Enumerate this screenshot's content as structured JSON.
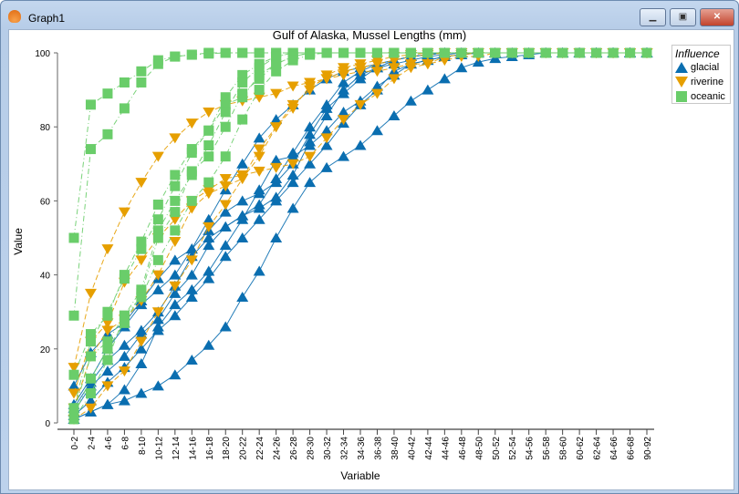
{
  "window": {
    "title": "Graph1",
    "icon": "scallop-shell-icon",
    "buttons": [
      "minimize",
      "maximize",
      "close"
    ]
  },
  "chart_data": {
    "type": "line",
    "title": "Gulf of Alaska, Mussel Lengths (mm)",
    "xlabel": "Variable",
    "ylabel": "Value",
    "ylim": [
      0,
      100
    ],
    "yticks": [
      "0",
      "20",
      "40",
      "60",
      "80",
      "100"
    ],
    "grid": false,
    "legend": {
      "title": "Influence",
      "placement": "right"
    },
    "categories": [
      "0-2",
      "2-4",
      "4-6",
      "6-8",
      "8-10",
      "10-12",
      "12-14",
      "14-16",
      "16-18",
      "18-20",
      "20-22",
      "22-24",
      "24-26",
      "26-28",
      "28-30",
      "30-32",
      "32-34",
      "34-36",
      "36-38",
      "38-40",
      "40-42",
      "42-44",
      "44-46",
      "46-48",
      "48-50",
      "50-52",
      "52-54",
      "54-56",
      "56-58",
      "58-60",
      "60-62",
      "62-64",
      "64-66",
      "66-68",
      "90-92"
    ],
    "groups": [
      {
        "name": "glacial",
        "color": "#0a6eb0",
        "marker": "triangle-up",
        "line": "solid"
      },
      {
        "name": "riverine",
        "color": "#e69f00",
        "marker": "triangle-down",
        "line": "dashed"
      },
      {
        "name": "oceanic",
        "color": "#6acd6a",
        "marker": "square",
        "line": "dashdot"
      }
    ],
    "series": [
      {
        "group": "glacial",
        "values": [
          10,
          19,
          24,
          27,
          33,
          39,
          44,
          47,
          55,
          63,
          70,
          77,
          82,
          86,
          90,
          93,
          95,
          96,
          97,
          98,
          99,
          99.5,
          100,
          100,
          100,
          100,
          100,
          100,
          100,
          100,
          100,
          100,
          100,
          100,
          100
        ]
      },
      {
        "group": "glacial",
        "values": [
          5,
          12,
          20,
          26,
          32,
          36,
          40,
          47,
          52,
          57,
          60,
          62,
          65,
          70,
          78,
          85,
          89,
          93,
          96,
          97,
          98,
          99,
          99.5,
          100,
          100,
          100,
          100,
          100,
          100,
          100,
          100,
          100,
          100,
          100,
          100
        ]
      },
      {
        "group": "glacial",
        "values": [
          4,
          11,
          17,
          21,
          25,
          30,
          37,
          45,
          50,
          53,
          56,
          58,
          61,
          67,
          76,
          83,
          90,
          94,
          96,
          98,
          99,
          99.5,
          100,
          100,
          100,
          100,
          100,
          100,
          100,
          100,
          100,
          100,
          100,
          100,
          100
        ]
      },
      {
        "group": "glacial",
        "values": [
          3,
          10,
          14,
          18,
          24,
          28,
          35,
          40,
          48,
          53,
          56,
          59,
          66,
          73,
          80,
          86,
          92,
          95,
          97,
          98,
          99,
          99.5,
          100,
          100,
          100,
          100,
          100,
          100,
          100,
          100,
          100,
          100,
          100,
          100,
          100
        ]
      },
      {
        "group": "glacial",
        "values": [
          2,
          6,
          11,
          15,
          20,
          25,
          29,
          34,
          39,
          45,
          50,
          55,
          60,
          65,
          70,
          75,
          81,
          86,
          90,
          95,
          97,
          98,
          99,
          99.5,
          100,
          100,
          100,
          100,
          100,
          100,
          100,
          100,
          100,
          100,
          100
        ]
      },
      {
        "group": "glacial",
        "values": [
          1,
          3,
          5,
          9,
          16,
          26,
          32,
          36,
          41,
          48,
          55,
          63,
          71,
          72,
          75,
          79,
          84,
          87,
          91,
          94,
          97,
          98,
          99,
          99.5,
          100,
          100,
          100,
          100,
          100,
          100,
          100,
          100,
          100,
          100,
          100
        ]
      },
      {
        "group": "glacial",
        "values": [
          1,
          3,
          5,
          6,
          8,
          10,
          13,
          17,
          21,
          26,
          34,
          41,
          50,
          58,
          65,
          69,
          72,
          75,
          79,
          83,
          87,
          90,
          93,
          96,
          97.5,
          98.5,
          99,
          99.5,
          100,
          100,
          100,
          100,
          100,
          100,
          100
        ]
      },
      {
        "group": "riverine",
        "values": [
          15,
          35,
          47,
          57,
          65,
          72,
          77,
          81,
          84,
          86,
          87,
          88,
          89,
          91,
          92,
          93,
          94,
          95,
          95,
          96,
          97,
          97,
          98,
          99,
          99,
          100,
          100,
          100,
          100,
          100,
          100,
          100,
          100,
          100,
          100
        ]
      },
      {
        "group": "riverine",
        "values": [
          8,
          22,
          27,
          38,
          44,
          50,
          55,
          60,
          63,
          66,
          67,
          68,
          69,
          70,
          72,
          77,
          82,
          86,
          89,
          93,
          96,
          97,
          99,
          99.5,
          100,
          100,
          100,
          100,
          100,
          100,
          100,
          100,
          100,
          100,
          100
        ]
      },
      {
        "group": "riverine",
        "values": [
          4,
          18,
          25,
          28,
          33,
          40,
          49,
          58,
          62,
          64,
          66,
          74,
          80,
          85,
          91,
          93,
          95,
          96,
          97,
          98,
          99,
          99.5,
          100,
          100,
          100,
          100,
          100,
          100,
          100,
          100,
          100,
          100,
          100,
          100,
          100
        ]
      },
      {
        "group": "riverine",
        "values": [
          1,
          4,
          10,
          14,
          22,
          30,
          37,
          44,
          53,
          59,
          66,
          72,
          80,
          86,
          90,
          94,
          96,
          97,
          98,
          99,
          99.5,
          100,
          100,
          100,
          100,
          100,
          100,
          100,
          100,
          100,
          100,
          100,
          100,
          100,
          100
        ]
      },
      {
        "group": "oceanic",
        "values": [
          50,
          86,
          89,
          92,
          95,
          98,
          99,
          99.5,
          99.8,
          100,
          100,
          100,
          100,
          100,
          100,
          100,
          100,
          100,
          100,
          100,
          100,
          100,
          100,
          100,
          100,
          100,
          100,
          100,
          100,
          100,
          100,
          100,
          100,
          100,
          100
        ]
      },
      {
        "group": "oceanic",
        "values": [
          29,
          74,
          78,
          85,
          92,
          97,
          99,
          99.5,
          100,
          100,
          100,
          100,
          100,
          100,
          100,
          100,
          100,
          100,
          100,
          100,
          100,
          100,
          100,
          100,
          100,
          100,
          100,
          100,
          100,
          100,
          100,
          100,
          100,
          100,
          100
        ]
      },
      {
        "group": "oceanic",
        "values": [
          13,
          24,
          29,
          40,
          49,
          59,
          67,
          74,
          79,
          86,
          88,
          94,
          97,
          99,
          100,
          100,
          100,
          100,
          100,
          100,
          100,
          100,
          100,
          100,
          100,
          100,
          100,
          100,
          100,
          100,
          100,
          100,
          100,
          100,
          100
        ]
      },
      {
        "group": "oceanic",
        "values": [
          4,
          22,
          30,
          39,
          47,
          55,
          64,
          73,
          79,
          88,
          94,
          97,
          99,
          100,
          100,
          100,
          100,
          100,
          100,
          100,
          100,
          100,
          100,
          100,
          100,
          100,
          100,
          100,
          100,
          100,
          100,
          100,
          100,
          100,
          100
        ]
      },
      {
        "group": "oceanic",
        "values": [
          3,
          18,
          22,
          29,
          36,
          52,
          60,
          67,
          75,
          84,
          92,
          96,
          99,
          100,
          100,
          100,
          100,
          100,
          100,
          100,
          100,
          100,
          100,
          100,
          100,
          100,
          100,
          100,
          100,
          100,
          100,
          100,
          100,
          100,
          100
        ]
      },
      {
        "group": "oceanic",
        "values": [
          2,
          12,
          20,
          27,
          35,
          50,
          57,
          68,
          72,
          80,
          89,
          93,
          97,
          99,
          100,
          100,
          100,
          100,
          100,
          100,
          100,
          100,
          100,
          100,
          100,
          100,
          100,
          100,
          100,
          100,
          100,
          100,
          100,
          100,
          100
        ]
      },
      {
        "group": "oceanic",
        "values": [
          1,
          8,
          17,
          29,
          34,
          44,
          52,
          60,
          65,
          72,
          82,
          90,
          95,
          98,
          99.5,
          100,
          100,
          100,
          100,
          100,
          100,
          100,
          100,
          100,
          100,
          100,
          100,
          100,
          100,
          100,
          100,
          100,
          100,
          100,
          100
        ]
      }
    ]
  }
}
